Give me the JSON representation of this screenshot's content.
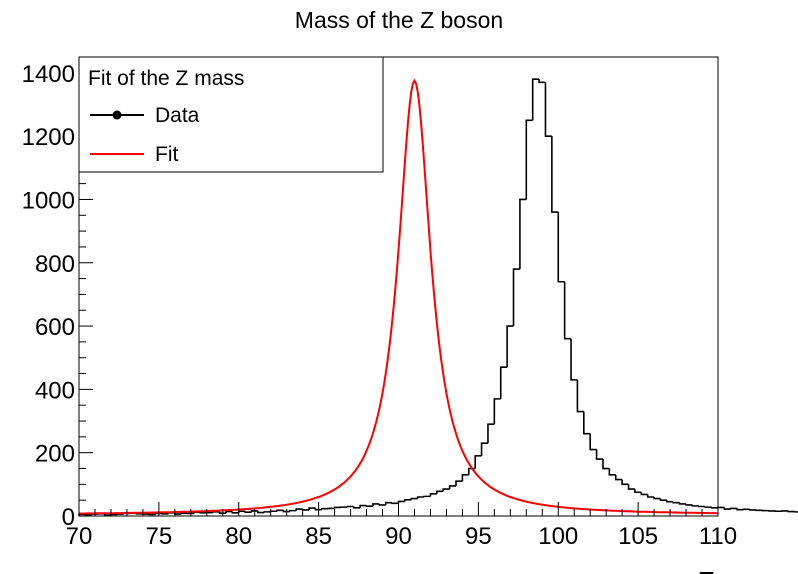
{
  "chart_data": {
    "type": "histogram-with-fit",
    "title": "Mass of the Z boson",
    "xlabel": "E",
    "ylabel": "",
    "xlim": [
      70,
      110
    ],
    "ylim": [
      0,
      1450
    ],
    "x_ticks": [
      70,
      75,
      80,
      85,
      90,
      95,
      100,
      105,
      110
    ],
    "y_ticks": [
      0,
      200,
      400,
      600,
      800,
      1000,
      1200,
      1400
    ],
    "grid": false,
    "legend": {
      "title": "Fit of the Z mass",
      "placement": "top-left",
      "entries": [
        {
          "name": "Data",
          "style": "black-line-marker"
        },
        {
          "name": "Fit",
          "style": "red-line"
        }
      ]
    },
    "fit": {
      "peak_x": 91.0,
      "peak_y": 1375,
      "model": "breit-wigner",
      "color": "#ff0000"
    },
    "series": [
      {
        "name": "Data",
        "bin_width": 0.4,
        "x_start": 70,
        "color": "#000000",
        "values": [
          5,
          4,
          6,
          7,
          3,
          5,
          6,
          8,
          9,
          7,
          6,
          5,
          8,
          7,
          10,
          6,
          9,
          8,
          12,
          10,
          11,
          13,
          9,
          14,
          10,
          15,
          12,
          16,
          11,
          13,
          15,
          18,
          14,
          17,
          22,
          19,
          25,
          20,
          23,
          24,
          27,
          28,
          30,
          26,
          33,
          31,
          38,
          35,
          42,
          40,
          46,
          51,
          55,
          60,
          62,
          70,
          78,
          85,
          95,
          110,
          130,
          150,
          190,
          230,
          290,
          370,
          470,
          600,
          780,
          1000,
          1250,
          1380,
          1370,
          1200,
          960,
          740,
          560,
          430,
          330,
          260,
          210,
          180,
          150,
          130,
          115,
          100,
          85,
          75,
          68,
          60,
          55,
          50,
          45,
          42,
          38,
          35,
          32,
          30,
          28,
          26,
          27,
          22,
          24,
          20,
          21,
          19,
          18,
          17,
          16,
          15,
          16,
          14,
          13,
          12,
          11,
          12,
          10,
          11,
          12,
          9,
          8,
          10,
          9,
          8,
          7,
          9,
          10,
          8,
          7,
          6,
          8,
          7,
          6,
          7,
          6,
          5,
          6,
          5,
          4,
          6,
          5,
          4,
          3,
          5,
          4,
          3,
          4,
          3
        ]
      }
    ]
  }
}
